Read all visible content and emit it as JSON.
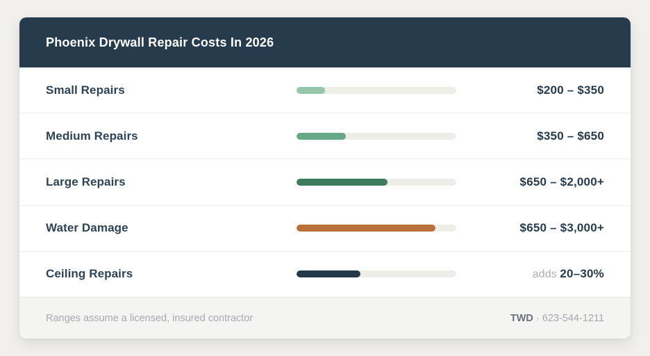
{
  "page": {
    "background": "#f1f0ec"
  },
  "card": {
    "header": {
      "title": "Phoenix Drywall Repair Costs In 2026",
      "background": "#263c4d",
      "text_color": "#ffffff"
    },
    "bar_track_color": "#edeee7",
    "rows": [
      {
        "label": "Small Repairs",
        "bar_percent": 18,
        "bar_color": "#93c6ab",
        "price_prefix": "",
        "price": "$200 – $350"
      },
      {
        "label": "Medium Repairs",
        "bar_percent": 31,
        "bar_color": "#69a886",
        "price_prefix": "",
        "price": "$350 – $650"
      },
      {
        "label": "Large Repairs",
        "bar_percent": 57,
        "bar_color": "#3e7a5c",
        "price_prefix": "",
        "price": "$650 – $2,000+"
      },
      {
        "label": "Water Damage",
        "bar_percent": 87,
        "bar_color": "#b9703b",
        "price_prefix": "",
        "price": "$650 – $3,000+"
      },
      {
        "label": "Ceiling Repairs",
        "bar_percent": 40,
        "bar_color": "#24394a",
        "price_prefix": "adds ",
        "price": "20–30%"
      }
    ],
    "footer": {
      "note": "Ranges assume a licensed, insured contractor",
      "brand": "TWD",
      "separator": " · ",
      "phone": "623-544-1211"
    }
  },
  "chart_data": {
    "type": "bar",
    "orientation": "horizontal",
    "title": "Phoenix Drywall Repair Costs In 2026",
    "categories": [
      "Small Repairs",
      "Medium Repairs",
      "Large Repairs",
      "Water Damage",
      "Ceiling Repairs"
    ],
    "series": [
      {
        "name": "relative cost (bar fill % of track)",
        "values": [
          18,
          31,
          57,
          87,
          40
        ]
      }
    ],
    "value_labels": [
      "$200 – $350",
      "$350 – $650",
      "$650 – $2,000+",
      "$650 – $3,000+",
      "adds 20–30%"
    ],
    "bar_colors": [
      "#93c6ab",
      "#69a886",
      "#3e7a5c",
      "#b9703b",
      "#24394a"
    ],
    "xlabel": "",
    "ylabel": "",
    "xlim": [
      0,
      100
    ],
    "grid": false,
    "legend": false,
    "annotations": [
      "Ranges assume a licensed, insured contractor",
      "TWD · 623-544-1211"
    ]
  }
}
